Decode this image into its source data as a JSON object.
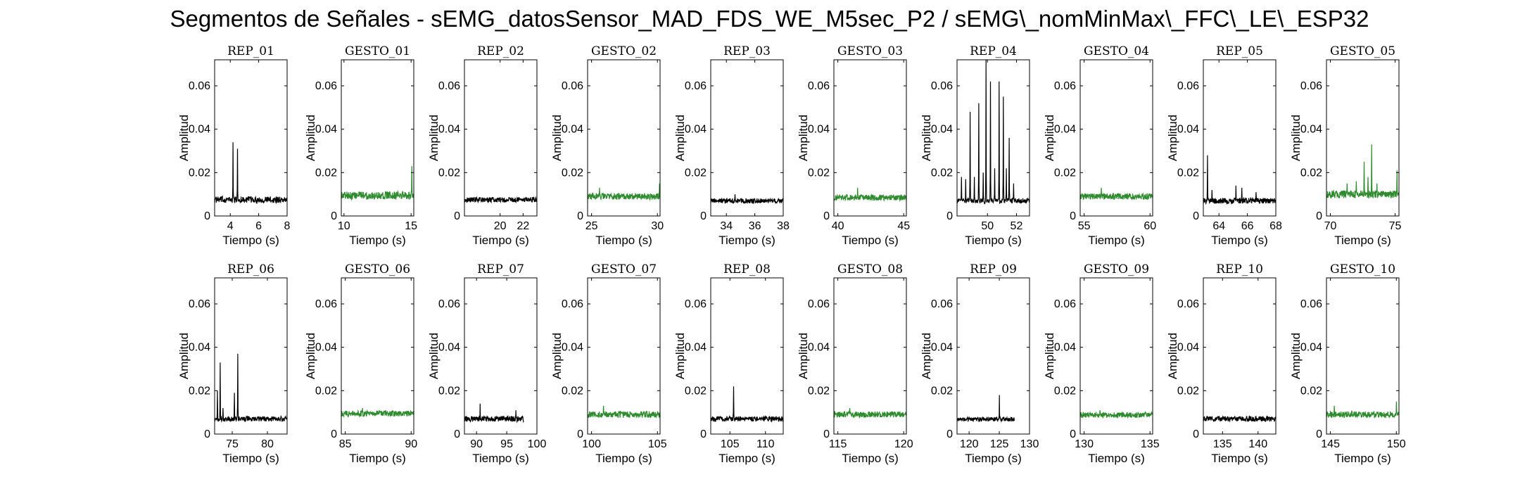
{
  "figure": {
    "title": "Segmentos de Señales - sEMG_datosSensor_MAD_FDS_WE_M5sec_P2 / sEMG\\_nomMinMax\\_FFC\\_LE\\_ESP32"
  },
  "colors": {
    "rep": "#000000",
    "gesto": "#2e8b2e",
    "axis": "#000000"
  },
  "chart_data": [
    {
      "type": "line",
      "title": "REP_01",
      "xlabel": "Tiempo (s)",
      "ylabel": "Amplitud",
      "xlim": [
        2.9,
        8
      ],
      "ylim": [
        0,
        0.072
      ],
      "xticks": [
        4,
        6,
        8
      ],
      "yticks": [
        0,
        0.02,
        0.04,
        0.06
      ],
      "series": [
        {
          "color": "#000000",
          "baseline": 0.0075,
          "noise": 0.0015,
          "peaks": [
            [
              4.2,
              0.034
            ],
            [
              4.5,
              0.031
            ]
          ]
        }
      ]
    },
    {
      "type": "line",
      "title": "GESTO_01",
      "xlabel": "Tiempo (s)",
      "ylabel": "Amplitud",
      "xlim": [
        9.8,
        15.2
      ],
      "ylim": [
        0,
        0.072
      ],
      "xticks": [
        10,
        15
      ],
      "yticks": [
        0,
        0.02,
        0.04,
        0.06
      ],
      "series": [
        {
          "color": "#2e8b2e",
          "baseline": 0.0095,
          "noise": 0.0018,
          "peaks": [
            [
              15.05,
              0.023
            ]
          ]
        }
      ]
    },
    {
      "type": "line",
      "title": "REP_02",
      "xlabel": "Tiempo (s)",
      "ylabel": "Amplitud",
      "xlim": [
        16.9,
        23.2
      ],
      "ylim": [
        0,
        0.072
      ],
      "xticks": [
        20,
        22
      ],
      "yticks": [
        0,
        0.02,
        0.04,
        0.06
      ],
      "series": [
        {
          "color": "#000000",
          "baseline": 0.0075,
          "noise": 0.0012,
          "peaks": []
        }
      ]
    },
    {
      "type": "line",
      "title": "GESTO_02",
      "xlabel": "Tiempo (s)",
      "ylabel": "Amplitud",
      "xlim": [
        24.7,
        30.2
      ],
      "ylim": [
        0,
        0.072
      ],
      "xticks": [
        25,
        30
      ],
      "yticks": [
        0,
        0.02,
        0.04,
        0.06
      ],
      "series": [
        {
          "color": "#2e8b2e",
          "baseline": 0.009,
          "noise": 0.0015,
          "peaks": [
            [
              25.6,
              0.013
            ],
            [
              30.15,
              0.015
            ]
          ]
        }
      ]
    },
    {
      "type": "line",
      "title": "REP_03",
      "xlabel": "Tiempo (s)",
      "ylabel": "Amplitud",
      "xlim": [
        32.9,
        38
      ],
      "ylim": [
        0,
        0.072
      ],
      "xticks": [
        34,
        36,
        38
      ],
      "yticks": [
        0,
        0.02,
        0.04,
        0.06
      ],
      "series": [
        {
          "color": "#000000",
          "baseline": 0.007,
          "noise": 0.0011,
          "peaks": [
            [
              34.6,
              0.01
            ]
          ]
        }
      ]
    },
    {
      "type": "line",
      "title": "GESTO_03",
      "xlabel": "Tiempo (s)",
      "ylabel": "Amplitud",
      "xlim": [
        39.7,
        45.2
      ],
      "ylim": [
        0,
        0.072
      ],
      "xticks": [
        40,
        45
      ],
      "yticks": [
        0,
        0.02,
        0.04,
        0.06
      ],
      "series": [
        {
          "color": "#2e8b2e",
          "baseline": 0.0085,
          "noise": 0.0014,
          "peaks": [
            [
              41.5,
              0.013
            ]
          ]
        }
      ]
    },
    {
      "type": "line",
      "title": "REP_04",
      "xlabel": "Tiempo (s)",
      "ylabel": "Amplitud",
      "xlim": [
        47.9,
        52.9
      ],
      "ylim": [
        0,
        0.072
      ],
      "xticks": [
        50,
        52
      ],
      "yticks": [
        0,
        0.02,
        0.04,
        0.06
      ],
      "series": [
        {
          "color": "#000000",
          "baseline": 0.007,
          "noise": 0.0012,
          "peaks": [
            [
              48.2,
              0.018
            ],
            [
              48.5,
              0.017
            ],
            [
              48.8,
              0.048
            ],
            [
              49.1,
              0.018
            ],
            [
              49.4,
              0.052
            ],
            [
              49.7,
              0.02
            ],
            [
              49.9,
              0.072
            ],
            [
              50.2,
              0.062
            ],
            [
              50.5,
              0.022
            ],
            [
              50.8,
              0.062
            ],
            [
              51.1,
              0.055
            ],
            [
              51.3,
              0.022
            ],
            [
              51.5,
              0.036
            ],
            [
              51.8,
              0.015
            ]
          ]
        }
      ]
    },
    {
      "type": "line",
      "title": "GESTO_04",
      "xlabel": "Tiempo (s)",
      "ylabel": "Amplitud",
      "xlim": [
        54.7,
        60.2
      ],
      "ylim": [
        0,
        0.072
      ],
      "xticks": [
        55,
        60
      ],
      "yticks": [
        0,
        0.02,
        0.04,
        0.06
      ],
      "series": [
        {
          "color": "#2e8b2e",
          "baseline": 0.009,
          "noise": 0.0014,
          "peaks": [
            [
              56.3,
              0.013
            ]
          ]
        }
      ]
    },
    {
      "type": "line",
      "title": "REP_05",
      "xlabel": "Tiempo (s)",
      "ylabel": "Amplitud",
      "xlim": [
        62.9,
        68
      ],
      "ylim": [
        0,
        0.072
      ],
      "xticks": [
        64,
        66,
        68
      ],
      "yticks": [
        0,
        0.02,
        0.04,
        0.06
      ],
      "series": [
        {
          "color": "#000000",
          "baseline": 0.007,
          "noise": 0.0013,
          "peaks": [
            [
              63.2,
              0.028
            ],
            [
              63.5,
              0.012
            ],
            [
              65.2,
              0.014
            ],
            [
              65.6,
              0.013
            ],
            [
              66.6,
              0.011
            ]
          ]
        }
      ]
    },
    {
      "type": "line",
      "title": "GESTO_05",
      "xlabel": "Tiempo (s)",
      "ylabel": "Amplitud",
      "xlim": [
        69.7,
        75.3
      ],
      "ylim": [
        0,
        0.072
      ],
      "xticks": [
        70,
        75
      ],
      "yticks": [
        0,
        0.02,
        0.04,
        0.06
      ],
      "series": [
        {
          "color": "#2e8b2e",
          "baseline": 0.01,
          "noise": 0.0018,
          "peaks": [
            [
              71.3,
              0.015
            ],
            [
              72.0,
              0.016
            ],
            [
              72.6,
              0.025
            ],
            [
              72.9,
              0.018
            ],
            [
              73.2,
              0.033
            ],
            [
              73.6,
              0.015
            ],
            [
              75.15,
              0.021
            ]
          ]
        }
      ]
    },
    {
      "type": "line",
      "title": "REP_06",
      "xlabel": "Tiempo (s)",
      "ylabel": "Amplitud",
      "xlim": [
        72.5,
        82.8
      ],
      "ylim": [
        0,
        0.072
      ],
      "xticks": [
        75,
        80
      ],
      "yticks": [
        0,
        0.02,
        0.04,
        0.06
      ],
      "series": [
        {
          "color": "#000000",
          "baseline": 0.007,
          "noise": 0.0012,
          "peaks": [
            [
              72.9,
              0.02
            ],
            [
              73.3,
              0.033
            ],
            [
              73.7,
              0.012
            ],
            [
              75.3,
              0.019
            ],
            [
              75.8,
              0.037
            ]
          ]
        }
      ]
    },
    {
      "type": "line",
      "title": "GESTO_06",
      "xlabel": "Tiempo (s)",
      "ylabel": "Amplitud",
      "xlim": [
        84.7,
        90.2
      ],
      "ylim": [
        0,
        0.072
      ],
      "xticks": [
        85,
        90
      ],
      "yticks": [
        0,
        0.02,
        0.04,
        0.06
      ],
      "series": [
        {
          "color": "#2e8b2e",
          "baseline": 0.0095,
          "noise": 0.0014,
          "peaks": [
            [
              86.3,
              0.012
            ]
          ]
        }
      ]
    },
    {
      "type": "line",
      "title": "REP_07",
      "xlabel": "Tiempo (s)",
      "ylabel": "Amplitud",
      "xlim": [
        88,
        100
      ],
      "ylim": [
        0,
        0.072
      ],
      "xticks": [
        90,
        95,
        100
      ],
      "yticks": [
        0,
        0.02,
        0.04,
        0.06
      ],
      "series": [
        {
          "color": "#000000",
          "baseline": 0.007,
          "noise": 0.0013,
          "xend": 97.8,
          "peaks": [
            [
              90.6,
              0.014
            ],
            [
              96.5,
              0.011
            ]
          ]
        }
      ]
    },
    {
      "type": "line",
      "title": "GESTO_07",
      "xlabel": "Tiempo (s)",
      "ylabel": "Amplitud",
      "xlim": [
        99.7,
        105.2
      ],
      "ylim": [
        0,
        0.072
      ],
      "xticks": [
        100,
        105
      ],
      "yticks": [
        0,
        0.02,
        0.04,
        0.06
      ],
      "series": [
        {
          "color": "#2e8b2e",
          "baseline": 0.009,
          "noise": 0.0015,
          "peaks": [
            [
              100.9,
              0.013
            ]
          ]
        }
      ]
    },
    {
      "type": "line",
      "title": "REP_08",
      "xlabel": "Tiempo (s)",
      "ylabel": "Amplitud",
      "xlim": [
        102.3,
        112.5
      ],
      "ylim": [
        0,
        0.072
      ],
      "xticks": [
        105,
        110
      ],
      "yticks": [
        0,
        0.02,
        0.04,
        0.06
      ],
      "series": [
        {
          "color": "#000000",
          "baseline": 0.007,
          "noise": 0.0012,
          "peaks": [
            [
              105.5,
              0.022
            ]
          ]
        }
      ]
    },
    {
      "type": "line",
      "title": "GESTO_08",
      "xlabel": "Tiempo (s)",
      "ylabel": "Amplitud",
      "xlim": [
        114.7,
        120.2
      ],
      "ylim": [
        0,
        0.072
      ],
      "xticks": [
        115,
        120
      ],
      "yticks": [
        0,
        0.02,
        0.04,
        0.06
      ],
      "series": [
        {
          "color": "#2e8b2e",
          "baseline": 0.009,
          "noise": 0.0014,
          "peaks": [
            [
              115.9,
              0.012
            ]
          ]
        }
      ]
    },
    {
      "type": "line",
      "title": "REP_09",
      "xlabel": "Tiempo (s)",
      "ylabel": "Amplitud",
      "xlim": [
        118,
        130
      ],
      "ylim": [
        0,
        0.072
      ],
      "xticks": [
        120,
        125,
        130
      ],
      "yticks": [
        0,
        0.02,
        0.04,
        0.06
      ],
      "series": [
        {
          "color": "#000000",
          "baseline": 0.0068,
          "noise": 0.001,
          "xend": 127.5,
          "peaks": [
            [
              125.0,
              0.018
            ]
          ]
        }
      ]
    },
    {
      "type": "line",
      "title": "GESTO_09",
      "xlabel": "Tiempo (s)",
      "ylabel": "Amplitud",
      "xlim": [
        129.7,
        135.2
      ],
      "ylim": [
        0,
        0.072
      ],
      "xticks": [
        130,
        135
      ],
      "yticks": [
        0,
        0.02,
        0.04,
        0.06
      ],
      "series": [
        {
          "color": "#2e8b2e",
          "baseline": 0.0088,
          "noise": 0.0013,
          "peaks": [
            [
              131.2,
              0.011
            ]
          ]
        }
      ]
    },
    {
      "type": "line",
      "title": "REP_10",
      "xlabel": "Tiempo (s)",
      "ylabel": "Amplitud",
      "xlim": [
        132.3,
        142.5
      ],
      "ylim": [
        0,
        0.072
      ],
      "xticks": [
        135,
        140
      ],
      "yticks": [
        0,
        0.02,
        0.04,
        0.06
      ],
      "series": [
        {
          "color": "#000000",
          "baseline": 0.007,
          "noise": 0.0012,
          "peaks": []
        }
      ]
    },
    {
      "type": "line",
      "title": "GESTO_10",
      "xlabel": "Tiempo (s)",
      "ylabel": "Amplitud",
      "xlim": [
        144.7,
        150.2
      ],
      "ylim": [
        0,
        0.072
      ],
      "xticks": [
        145,
        150
      ],
      "yticks": [
        0,
        0.02,
        0.04,
        0.06
      ],
      "series": [
        {
          "color": "#2e8b2e",
          "baseline": 0.009,
          "noise": 0.0014,
          "peaks": [
            [
              145.3,
              0.013
            ],
            [
              150.0,
              0.015
            ]
          ]
        }
      ]
    }
  ]
}
